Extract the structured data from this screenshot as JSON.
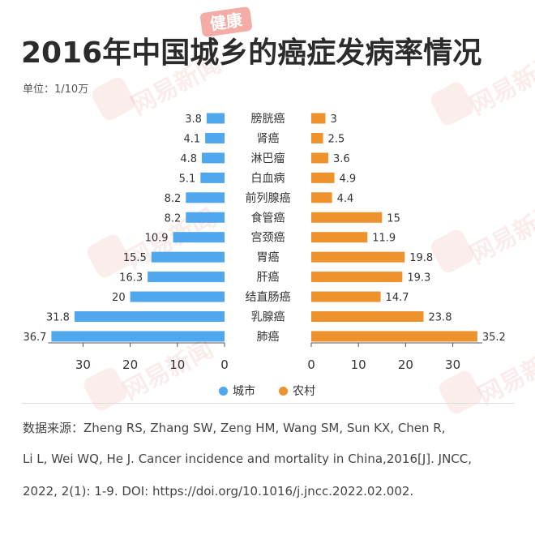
{
  "title": "2016年中国城乡的癌症发病率情况",
  "unit": "单位：1/10万",
  "logo_text": "健康",
  "watermark_text": "网易新闻",
  "legend": {
    "city": {
      "label": "城市",
      "color": "#4fa7ee"
    },
    "rural": {
      "label": "农村",
      "color": "#ee922e"
    }
  },
  "source": {
    "line1": "数据来源：Zheng RS, Zhang SW, Zeng HM, Wang SM, Sun KX, Chen R,",
    "line2": " Li L, Wei WQ, He J. Cancer incidence and mortality in China,2016[J]. JNCC,",
    "line3": "2022, 2(1): 1-9. DOI: https://doi.org/10.1016/j.jncc.2022.02.002."
  },
  "chart_data": {
    "type": "bar",
    "orientation": "horizontal-butterfly",
    "categories": [
      "膀胱癌",
      "肾癌",
      "淋巴瘤",
      "白血病",
      "前列腺癌",
      "食管癌",
      "宫颈癌",
      "胃癌",
      "肝癌",
      "结直肠癌",
      "乳腺癌",
      "肺癌"
    ],
    "series": [
      {
        "name": "城市",
        "color": "#4fa7ee",
        "values": [
          3.8,
          4.1,
          4.8,
          5.1,
          8.2,
          8.2,
          10.9,
          15.5,
          16.3,
          20,
          31.8,
          36.7
        ]
      },
      {
        "name": "农村",
        "color": "#ee922e",
        "values": [
          3,
          2.5,
          3.6,
          4.9,
          4.4,
          15,
          11.9,
          19.8,
          19.3,
          14.7,
          23.8,
          35.2
        ]
      }
    ],
    "left_ticks": [
      "30",
      "20",
      "10",
      "0"
    ],
    "right_ticks": [
      "0",
      "10",
      "20",
      "30"
    ],
    "left_tick_values": [
      30,
      20,
      10,
      0
    ],
    "right_tick_values": [
      0,
      10,
      20,
      30
    ],
    "xlim": [
      0,
      36.7
    ],
    "grid": false,
    "legend_position": "bottom"
  }
}
